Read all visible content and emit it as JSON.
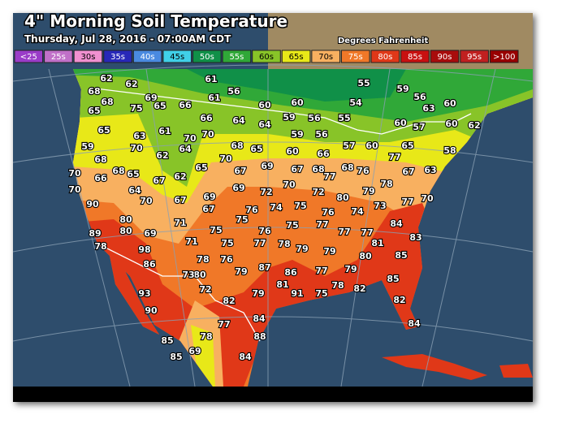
{
  "header": {
    "title": "4\" Morning Soil Temperature",
    "subtitle": "Thursday, Jul 28, 2016 - 07:00AM CDT",
    "units": "Degrees Fahrenheit"
  },
  "legend": [
    {
      "label": "<25",
      "color": "#9a3cc8"
    },
    {
      "label": "25s",
      "color": "#c070c8"
    },
    {
      "label": "30s",
      "color": "#f090d0"
    },
    {
      "label": "35s",
      "color": "#2828b8"
    },
    {
      "label": "40s",
      "color": "#4a8ae0"
    },
    {
      "label": "45s",
      "color": "#40d0e8"
    },
    {
      "label": "50s",
      "color": "#109048"
    },
    {
      "label": "55s",
      "color": "#30a838"
    },
    {
      "label": "60s",
      "color": "#88c428"
    },
    {
      "label": "65s",
      "color": "#e8e818"
    },
    {
      "label": "70s",
      "color": "#f8b060"
    },
    {
      "label": "75s",
      "color": "#f07828"
    },
    {
      "label": "80s",
      "color": "#e03818"
    },
    {
      "label": "85s",
      "color": "#c81010"
    },
    {
      "label": "90s",
      "color": "#a80c0c"
    },
    {
      "label": "95s",
      "color": "#c02020"
    },
    {
      "label": ">100",
      "color": "#980000"
    }
  ],
  "stations": [
    62,
    62,
    61,
    56,
    55,
    59,
    56,
    60,
    63,
    68,
    68,
    75,
    69,
    65,
    66,
    61,
    60,
    60,
    54,
    65,
    66,
    64,
    64,
    59,
    56,
    55,
    60,
    57,
    60,
    62,
    65,
    63,
    61,
    70,
    70,
    68,
    65,
    59,
    60,
    56,
    57,
    60,
    65,
    58,
    59,
    70,
    64,
    62,
    70,
    65,
    66,
    67,
    68,
    77,
    68,
    76,
    77,
    67,
    63,
    68,
    68,
    65,
    66,
    70,
    67,
    62,
    67,
    69,
    70,
    64,
    70,
    67,
    69,
    69,
    72,
    70,
    72,
    80,
    79,
    78,
    77,
    70,
    90,
    67,
    75,
    76,
    74,
    75,
    75,
    76,
    74,
    73,
    84,
    80,
    71,
    89,
    80,
    69,
    75,
    76,
    77,
    77,
    77,
    83,
    78,
    98,
    71,
    75,
    77,
    78,
    79,
    81,
    85,
    86,
    78,
    76,
    79,
    80,
    80,
    79,
    87,
    86,
    77,
    79,
    73,
    93,
    72,
    79,
    81,
    91,
    75,
    78,
    82,
    85,
    82,
    82,
    90,
    84,
    77,
    84,
    88,
    78,
    85,
    69,
    85,
    84
  ]
}
